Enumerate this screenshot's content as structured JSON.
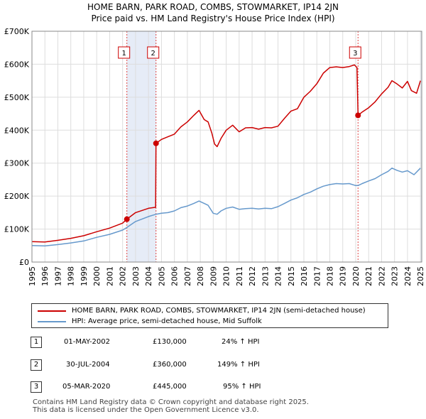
{
  "title": "HOME BARN, PARK ROAD, COMBS, STOWMARKET, IP14 2JN",
  "subtitle": "Price paid vs. HM Land Registry's House Price Index (HPI)",
  "colors": {
    "property": "#cc0000",
    "hpi": "#6699cc",
    "shade": "#e6ecf7",
    "grid": "#dddddd"
  },
  "legend": {
    "property": "HOME BARN, PARK ROAD, COMBS, STOWMARKET, IP14 2JN (semi-detached house)",
    "hpi": "HPI: Average price, semi-detached house, Mid Suffolk"
  },
  "transactions": [
    {
      "num": "1",
      "date": "01-MAY-2002",
      "price": "£130,000",
      "hpi": "24% ↑ HPI"
    },
    {
      "num": "2",
      "date": "30-JUL-2004",
      "price": "£360,000",
      "hpi": "149% ↑ HPI"
    },
    {
      "num": "3",
      "date": "05-MAR-2020",
      "price": "£445,000",
      "hpi": "95% ↑ HPI"
    }
  ],
  "footer": {
    "line1": "Contains HM Land Registry data © Crown copyright and database right 2025.",
    "line2": "This data is licensed under the Open Government Licence v3.0."
  },
  "chart_data": {
    "type": "line",
    "title": "HOME BARN, PARK ROAD, COMBS, STOWMARKET, IP14 2JN",
    "subtitle": "Price paid vs. HM Land Registry's House Price Index (HPI)",
    "xlim": [
      1995,
      2025.1
    ],
    "ylim": [
      0,
      700000
    ],
    "x_ticks": [
      1995,
      1996,
      1997,
      1998,
      1999,
      2000,
      2001,
      2002,
      2003,
      2004,
      2005,
      2006,
      2007,
      2008,
      2009,
      2010,
      2011,
      2012,
      2013,
      2014,
      2015,
      2016,
      2017,
      2018,
      2019,
      2020,
      2021,
      2022,
      2023,
      2024,
      2025
    ],
    "y_ticks": [
      {
        "value": 0,
        "label": "£0"
      },
      {
        "value": 100000,
        "label": "£100K"
      },
      {
        "value": 200000,
        "label": "£200K"
      },
      {
        "value": 300000,
        "label": "£300K"
      },
      {
        "value": 400000,
        "label": "£400K"
      },
      {
        "value": 500000,
        "label": "£500K"
      },
      {
        "value": 600000,
        "label": "£600K"
      },
      {
        "value": 700000,
        "label": "£700K"
      }
    ],
    "shaded_ranges": [
      [
        2002.33,
        2004.58
      ],
      [
        2025.0,
        2025.1
      ]
    ],
    "markers": [
      {
        "label": "1",
        "x": 2002.33,
        "y": 130000
      },
      {
        "label": "2",
        "x": 2004.58,
        "y": 360000
      },
      {
        "label": "3",
        "x": 2020.18,
        "y": 445000
      }
    ],
    "series": [
      {
        "name": "HOME BARN, PARK ROAD, COMBS, STOWMARKET, IP14 2JN (semi-detached house)",
        "color": "#cc0000",
        "points": [
          [
            1995,
            62000
          ],
          [
            1996,
            61000
          ],
          [
            1997,
            66000
          ],
          [
            1998,
            72000
          ],
          [
            1999,
            80000
          ],
          [
            2000,
            92000
          ],
          [
            2001,
            103000
          ],
          [
            2002,
            118000
          ],
          [
            2002.33,
            130000
          ],
          [
            2003,
            150000
          ],
          [
            2004,
            163000
          ],
          [
            2004.55,
            166000
          ],
          [
            2004.58,
            360000
          ],
          [
            2005,
            372000
          ],
          [
            2005.5,
            380000
          ],
          [
            2006,
            388000
          ],
          [
            2006.5,
            410000
          ],
          [
            2007,
            425000
          ],
          [
            2007.5,
            445000
          ],
          [
            2007.9,
            460000
          ],
          [
            2008.3,
            432000
          ],
          [
            2008.6,
            425000
          ],
          [
            2008.9,
            390000
          ],
          [
            2009.1,
            358000
          ],
          [
            2009.3,
            350000
          ],
          [
            2009.6,
            375000
          ],
          [
            2010,
            400000
          ],
          [
            2010.5,
            415000
          ],
          [
            2011,
            395000
          ],
          [
            2011.5,
            407000
          ],
          [
            2012,
            408000
          ],
          [
            2012.5,
            403000
          ],
          [
            2013,
            408000
          ],
          [
            2013.5,
            407000
          ],
          [
            2014,
            412000
          ],
          [
            2014.5,
            436000
          ],
          [
            2015,
            458000
          ],
          [
            2015.5,
            465000
          ],
          [
            2016,
            500000
          ],
          [
            2016.5,
            518000
          ],
          [
            2017,
            541000
          ],
          [
            2017.5,
            573000
          ],
          [
            2018,
            590000
          ],
          [
            2018.5,
            592000
          ],
          [
            2019,
            590000
          ],
          [
            2019.5,
            593000
          ],
          [
            2019.9,
            598000
          ],
          [
            2020.1,
            590000
          ],
          [
            2020.18,
            445000
          ],
          [
            2020.5,
            455000
          ],
          [
            2021,
            468000
          ],
          [
            2021.5,
            486000
          ],
          [
            2022,
            510000
          ],
          [
            2022.5,
            530000
          ],
          [
            2022.8,
            550000
          ],
          [
            2023.2,
            540000
          ],
          [
            2023.6,
            528000
          ],
          [
            2024,
            548000
          ],
          [
            2024.3,
            520000
          ],
          [
            2024.7,
            512000
          ],
          [
            2025,
            550000
          ]
        ]
      },
      {
        "name": "HPI: Average price, semi-detached house, Mid Suffolk",
        "color": "#6699cc",
        "points": [
          [
            1995,
            50000
          ],
          [
            1996,
            49000
          ],
          [
            1997,
            53000
          ],
          [
            1998,
            58000
          ],
          [
            1999,
            64000
          ],
          [
            2000,
            75000
          ],
          [
            2001,
            84000
          ],
          [
            2002,
            97000
          ],
          [
            2002.33,
            105000
          ],
          [
            2003,
            123000
          ],
          [
            2004,
            138000
          ],
          [
            2004.58,
            145000
          ],
          [
            2005,
            148000
          ],
          [
            2005.5,
            150000
          ],
          [
            2006,
            155000
          ],
          [
            2006.5,
            165000
          ],
          [
            2007,
            170000
          ],
          [
            2007.5,
            178000
          ],
          [
            2007.9,
            185000
          ],
          [
            2008.3,
            178000
          ],
          [
            2008.6,
            172000
          ],
          [
            2009,
            148000
          ],
          [
            2009.3,
            145000
          ],
          [
            2009.6,
            155000
          ],
          [
            2010,
            163000
          ],
          [
            2010.5,
            167000
          ],
          [
            2011,
            160000
          ],
          [
            2011.5,
            162000
          ],
          [
            2012,
            163000
          ],
          [
            2012.5,
            161000
          ],
          [
            2013,
            163000
          ],
          [
            2013.5,
            162000
          ],
          [
            2014,
            168000
          ],
          [
            2014.5,
            178000
          ],
          [
            2015,
            188000
          ],
          [
            2015.5,
            195000
          ],
          [
            2016,
            205000
          ],
          [
            2016.5,
            212000
          ],
          [
            2017,
            222000
          ],
          [
            2017.5,
            230000
          ],
          [
            2018,
            235000
          ],
          [
            2018.5,
            238000
          ],
          [
            2019,
            237000
          ],
          [
            2019.5,
            238000
          ],
          [
            2020,
            232000
          ],
          [
            2020.18,
            232000
          ],
          [
            2020.5,
            238000
          ],
          [
            2021,
            246000
          ],
          [
            2021.5,
            253000
          ],
          [
            2022,
            265000
          ],
          [
            2022.5,
            275000
          ],
          [
            2022.8,
            285000
          ],
          [
            2023.2,
            278000
          ],
          [
            2023.6,
            273000
          ],
          [
            2024,
            277000
          ],
          [
            2024.5,
            265000
          ],
          [
            2025,
            285000
          ]
        ]
      }
    ]
  }
}
